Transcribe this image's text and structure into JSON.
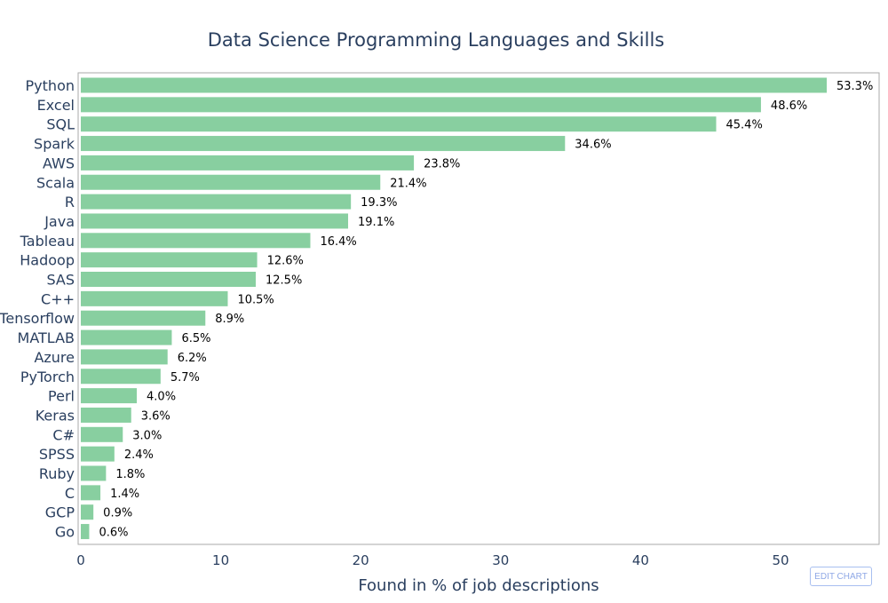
{
  "chart_data": {
    "type": "bar",
    "orientation": "horizontal",
    "title": "Data Science Programming Languages and Skills",
    "xlabel": "Found in % of job descriptions",
    "ylabel": "",
    "xlim": [
      0,
      55.5
    ],
    "xticks": [
      0,
      10,
      20,
      30,
      40,
      50
    ],
    "categories": [
      "Python",
      "Excel",
      "SQL",
      "Spark",
      "AWS",
      "Scala",
      "R",
      "Java",
      "Tableau",
      "Hadoop",
      "SAS",
      "C++",
      "Tensorflow",
      "MATLAB",
      "Azure",
      "PyTorch",
      "Perl",
      "Keras",
      "C#",
      "SPSS",
      "Ruby",
      "C",
      "GCP",
      "Go"
    ],
    "values": [
      53.3,
      48.6,
      45.4,
      34.6,
      23.8,
      21.4,
      19.3,
      19.1,
      16.4,
      12.6,
      12.5,
      10.5,
      8.9,
      6.5,
      6.2,
      5.7,
      4.0,
      3.6,
      3.0,
      2.4,
      1.8,
      1.4,
      0.9,
      0.6
    ],
    "labels": [
      "53.3%",
      "48.6%",
      "45.4%",
      "34.6%",
      "23.8%",
      "21.4%",
      "19.3%",
      "19.1%",
      "16.4%",
      "12.6%",
      "12.5%",
      "10.5%",
      "8.9%",
      "6.5%",
      "6.2%",
      "5.7%",
      "4.0%",
      "3.6%",
      "3.0%",
      "2.4%",
      "1.8%",
      "1.4%",
      "0.9%",
      "0.6%"
    ],
    "bar_color": "#88cfa0",
    "grid": false
  },
  "edit_chart_label": "EDIT CHART"
}
